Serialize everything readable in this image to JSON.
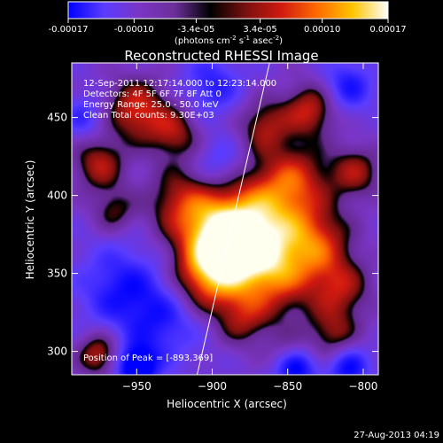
{
  "colorbar": {
    "tick_labels": [
      "-0.00017",
      "-0.00010",
      "-3.4e-05",
      "3.4e-05",
      "0.00010",
      "0.00017"
    ],
    "tick_values": [
      -0.00017,
      -0.0001,
      -3.4e-05,
      3.4e-05,
      0.0001,
      0.00017
    ],
    "range": [
      -0.00017,
      0.00017
    ],
    "unit_label": "(photons cm",
    "unit_exp1": "-2",
    "unit_mid": " s",
    "unit_exp2": "-1",
    "unit_end": " asec",
    "unit_exp3": "-2",
    "unit_close": ")",
    "colors": [
      "#0000ff",
      "#5b3cff",
      "#7a35c4",
      "#6c2f9a",
      "#000000",
      "#7a1010",
      "#d01a10",
      "#ff6a00",
      "#ffc400",
      "#ffffff"
    ]
  },
  "chart_data": {
    "type": "heatmap",
    "title": "Reconstructed RHESSI Image",
    "xlabel": "Heliocentric X (arcsec)",
    "ylabel": "Heliocentric Y (arcsec)",
    "xlim": [
      -993,
      -790
    ],
    "ylim": [
      285,
      485
    ],
    "x_ticks": [
      -950,
      -900,
      -850,
      -800
    ],
    "x_tick_labels": [
      "−950",
      "−900",
      "−850",
      "−800"
    ],
    "y_ticks": [
      300,
      350,
      400,
      450
    ],
    "y_tick_labels": [
      "300",
      "350",
      "400",
      "450"
    ],
    "annotations": [
      "12-Sep-2011 12:17:14.000 to 12:23:14.000",
      "Detectors: 4F 5F 6F 7F 8F  Att 0",
      "Energy Range: 25.0 - 50.0 keV",
      "Clean     Total counts: 9.30E+03"
    ],
    "peak_label": "Position of Peak = [-893,369]",
    "peak": [
      -893,
      369
    ],
    "limb_line": [
      [
        -910,
        285
      ],
      [
        -862,
        485
      ]
    ],
    "sources": [
      {
        "x": -893,
        "y": 369,
        "amp": 1.0,
        "sigma": 18
      },
      {
        "x": -870,
        "y": 385,
        "amp": 0.7,
        "sigma": 22
      },
      {
        "x": -860,
        "y": 350,
        "amp": 0.65,
        "sigma": 20
      },
      {
        "x": -905,
        "y": 345,
        "amp": 0.55,
        "sigma": 16
      },
      {
        "x": -830,
        "y": 370,
        "amp": 0.5,
        "sigma": 16
      },
      {
        "x": -815,
        "y": 340,
        "amp": 0.45,
        "sigma": 14
      },
      {
        "x": -845,
        "y": 410,
        "amp": 0.5,
        "sigma": 16
      },
      {
        "x": -920,
        "y": 395,
        "amp": 0.5,
        "sigma": 16
      },
      {
        "x": -950,
        "y": 455,
        "amp": 0.6,
        "sigma": 14
      },
      {
        "x": -925,
        "y": 440,
        "amp": 0.45,
        "sigma": 12
      },
      {
        "x": -975,
        "y": 420,
        "amp": 0.5,
        "sigma": 12
      },
      {
        "x": -965,
        "y": 390,
        "amp": 0.35,
        "sigma": 10
      },
      {
        "x": -865,
        "y": 445,
        "amp": 0.45,
        "sigma": 12
      },
      {
        "x": -835,
        "y": 455,
        "amp": 0.55,
        "sigma": 12
      },
      {
        "x": -805,
        "y": 415,
        "amp": 0.45,
        "sigma": 12
      },
      {
        "x": -880,
        "y": 320,
        "amp": 0.35,
        "sigma": 12
      },
      {
        "x": -820,
        "y": 310,
        "amp": 0.4,
        "sigma": 12
      },
      {
        "x": -975,
        "y": 298,
        "amp": 0.55,
        "sigma": 10
      },
      {
        "x": -850,
        "y": 300,
        "amp": 0.25,
        "sigma": 10
      },
      {
        "x": -930,
        "y": 320,
        "amp": -0.35,
        "sigma": 18
      },
      {
        "x": -960,
        "y": 340,
        "amp": -0.4,
        "sigma": 20
      },
      {
        "x": -950,
        "y": 290,
        "amp": -0.7,
        "sigma": 10
      },
      {
        "x": -845,
        "y": 290,
        "amp": -0.6,
        "sigma": 10
      },
      {
        "x": -810,
        "y": 290,
        "amp": -0.5,
        "sigma": 10
      },
      {
        "x": -895,
        "y": 420,
        "amp": -0.3,
        "sigma": 12
      },
      {
        "x": -810,
        "y": 470,
        "amp": -0.4,
        "sigma": 12
      },
      {
        "x": -900,
        "y": 470,
        "amp": -0.35,
        "sigma": 14
      },
      {
        "x": -985,
        "y": 450,
        "amp": -0.3,
        "sigma": 10
      }
    ]
  },
  "footer": {
    "timestamp": "27-Aug-2013 04:19"
  }
}
